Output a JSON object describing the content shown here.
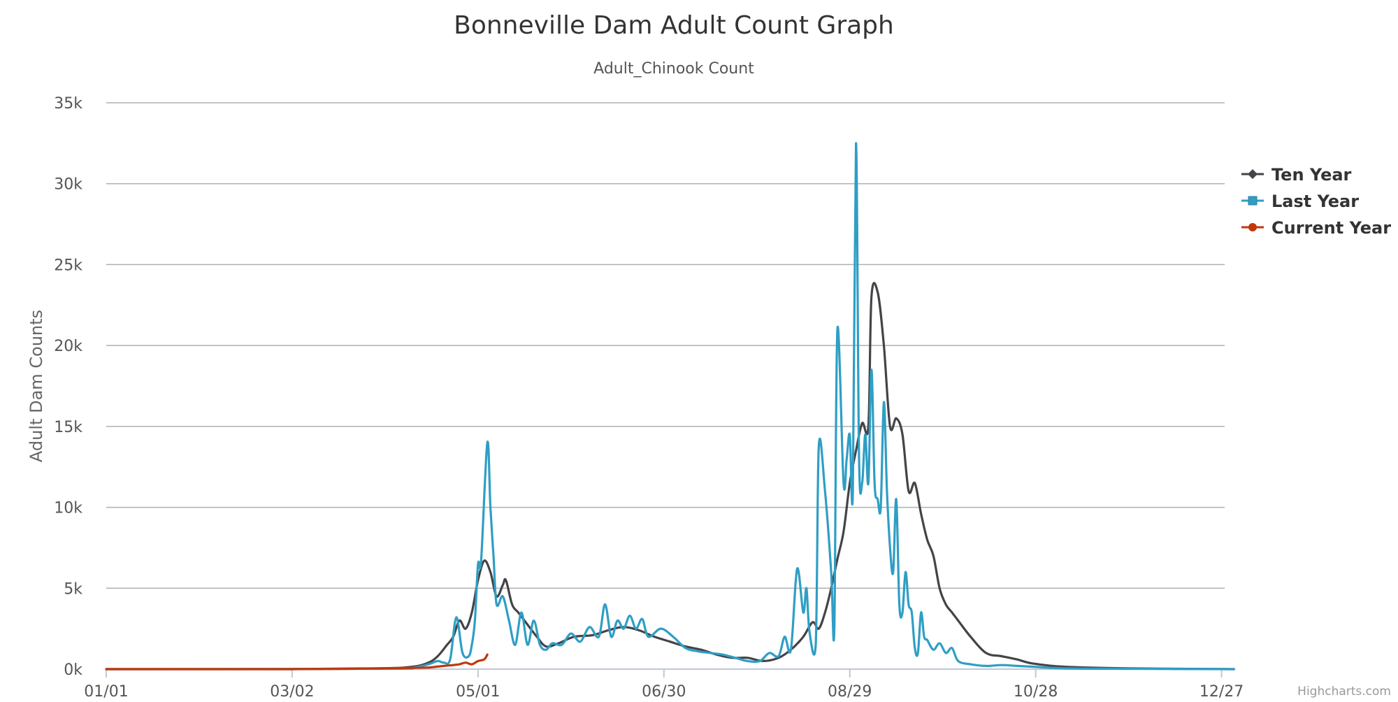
{
  "chart_data": {
    "type": "line",
    "title": "Bonneville Dam Adult Count Graph",
    "subtitle": "Adult_Chinook Count",
    "ylabel": "Adult Dam Counts",
    "xlabel": "",
    "ylim": [
      0,
      35000
    ],
    "y_ticks": [
      0,
      5000,
      10000,
      15000,
      20000,
      25000,
      30000,
      35000
    ],
    "y_tick_labels": [
      "0k",
      "5k",
      "10k",
      "15k",
      "20k",
      "25k",
      "30k",
      "35k"
    ],
    "x_ticks": [
      "01/01",
      "03/02",
      "05/01",
      "06/30",
      "08/29",
      "10/28",
      "12/27"
    ],
    "x_tick_days": [
      1,
      61,
      121,
      181,
      241,
      301,
      361
    ],
    "grid": true,
    "legend_position": "right",
    "credits": "Highcharts.com",
    "series": [
      {
        "name": "Ten Year",
        "color": "#434348",
        "marker": "diamond",
        "points": [
          [
            1,
            0
          ],
          [
            60,
            0
          ],
          [
            90,
            50
          ],
          [
            100,
            150
          ],
          [
            105,
            400
          ],
          [
            108,
            800
          ],
          [
            111,
            1500
          ],
          [
            113,
            2000
          ],
          [
            115,
            3000
          ],
          [
            117,
            2500
          ],
          [
            119,
            3500
          ],
          [
            121,
            5500
          ],
          [
            123,
            6700
          ],
          [
            125,
            6000
          ],
          [
            127,
            4500
          ],
          [
            129,
            5200
          ],
          [
            130,
            5500
          ],
          [
            132,
            4000
          ],
          [
            134,
            3500
          ],
          [
            136,
            3000
          ],
          [
            140,
            2000
          ],
          [
            143,
            1400
          ],
          [
            147,
            1600
          ],
          [
            152,
            2000
          ],
          [
            158,
            2100
          ],
          [
            163,
            2400
          ],
          [
            168,
            2600
          ],
          [
            173,
            2400
          ],
          [
            178,
            2000
          ],
          [
            183,
            1700
          ],
          [
            188,
            1400
          ],
          [
            193,
            1200
          ],
          [
            198,
            900
          ],
          [
            203,
            700
          ],
          [
            208,
            700
          ],
          [
            213,
            500
          ],
          [
            218,
            700
          ],
          [
            222,
            1200
          ],
          [
            226,
            2000
          ],
          [
            229,
            2900
          ],
          [
            231,
            2500
          ],
          [
            233,
            3500
          ],
          [
            235,
            5000
          ],
          [
            237,
            6800
          ],
          [
            239,
            8500
          ],
          [
            241,
            11500
          ],
          [
            243,
            13500
          ],
          [
            245,
            15200
          ],
          [
            247,
            15000
          ],
          [
            248,
            23000
          ],
          [
            250,
            23300
          ],
          [
            252,
            20000
          ],
          [
            254,
            15000
          ],
          [
            256,
            15500
          ],
          [
            258,
            14500
          ],
          [
            260,
            11000
          ],
          [
            262,
            11500
          ],
          [
            264,
            9600
          ],
          [
            266,
            8000
          ],
          [
            268,
            7000
          ],
          [
            270,
            5000
          ],
          [
            272,
            4000
          ],
          [
            274,
            3500
          ],
          [
            276,
            3000
          ],
          [
            280,
            2000
          ],
          [
            285,
            1000
          ],
          [
            290,
            800
          ],
          [
            295,
            600
          ],
          [
            300,
            350
          ],
          [
            310,
            150
          ],
          [
            330,
            50
          ],
          [
            365,
            0
          ]
        ]
      },
      {
        "name": "Last Year",
        "color": "#2f9ec4",
        "marker": "square",
        "points": [
          [
            1,
            0
          ],
          [
            90,
            20
          ],
          [
            100,
            100
          ],
          [
            105,
            300
          ],
          [
            108,
            500
          ],
          [
            110,
            400
          ],
          [
            112,
            600
          ],
          [
            114,
            3200
          ],
          [
            116,
            1000
          ],
          [
            118,
            800
          ],
          [
            119,
            1500
          ],
          [
            120,
            3000
          ],
          [
            121,
            6500
          ],
          [
            122,
            6700
          ],
          [
            124,
            14000
          ],
          [
            125,
            10000
          ],
          [
            126,
            7000
          ],
          [
            127,
            4000
          ],
          [
            129,
            4500
          ],
          [
            131,
            3000
          ],
          [
            133,
            1500
          ],
          [
            135,
            3500
          ],
          [
            137,
            1500
          ],
          [
            139,
            3000
          ],
          [
            141,
            1500
          ],
          [
            143,
            1200
          ],
          [
            145,
            1600
          ],
          [
            148,
            1500
          ],
          [
            151,
            2200
          ],
          [
            154,
            1700
          ],
          [
            157,
            2600
          ],
          [
            160,
            2000
          ],
          [
            162,
            4000
          ],
          [
            164,
            2000
          ],
          [
            166,
            3000
          ],
          [
            168,
            2500
          ],
          [
            170,
            3300
          ],
          [
            172,
            2500
          ],
          [
            174,
            3100
          ],
          [
            176,
            2000
          ],
          [
            180,
            2500
          ],
          [
            184,
            2000
          ],
          [
            188,
            1300
          ],
          [
            192,
            1100
          ],
          [
            196,
            1000
          ],
          [
            200,
            900
          ],
          [
            204,
            700
          ],
          [
            208,
            500
          ],
          [
            212,
            500
          ],
          [
            215,
            1000
          ],
          [
            218,
            800
          ],
          [
            220,
            2000
          ],
          [
            222,
            1200
          ],
          [
            224,
            6200
          ],
          [
            226,
            3500
          ],
          [
            227,
            5000
          ],
          [
            228,
            2300
          ],
          [
            230,
            1500
          ],
          [
            231,
            13800
          ],
          [
            233,
            11000
          ],
          [
            235,
            6000
          ],
          [
            236,
            2500
          ],
          [
            237,
            21000
          ],
          [
            239,
            11500
          ],
          [
            240,
            13000
          ],
          [
            241,
            14500
          ],
          [
            242,
            11000
          ],
          [
            243,
            32500
          ],
          [
            244,
            13000
          ],
          [
            245,
            11500
          ],
          [
            246,
            14500
          ],
          [
            247,
            11500
          ],
          [
            248,
            18500
          ],
          [
            249,
            11500
          ],
          [
            250,
            10500
          ],
          [
            251,
            10000
          ],
          [
            252,
            16500
          ],
          [
            253,
            11000
          ],
          [
            254,
            7500
          ],
          [
            255,
            6000
          ],
          [
            256,
            10500
          ],
          [
            257,
            4000
          ],
          [
            258,
            3500
          ],
          [
            259,
            6000
          ],
          [
            260,
            4000
          ],
          [
            261,
            3500
          ],
          [
            262,
            1300
          ],
          [
            263,
            1000
          ],
          [
            264,
            3500
          ],
          [
            265,
            2000
          ],
          [
            266,
            1800
          ],
          [
            268,
            1200
          ],
          [
            270,
            1600
          ],
          [
            272,
            1000
          ],
          [
            274,
            1300
          ],
          [
            276,
            500
          ],
          [
            280,
            300
          ],
          [
            285,
            200
          ],
          [
            290,
            250
          ],
          [
            295,
            200
          ],
          [
            300,
            150
          ],
          [
            310,
            50
          ],
          [
            330,
            20
          ],
          [
            365,
            0
          ]
        ]
      },
      {
        "name": "Current Year",
        "color": "#c1380b",
        "marker": "circle",
        "points": [
          [
            1,
            0
          ],
          [
            60,
            0
          ],
          [
            80,
            20
          ],
          [
            90,
            50
          ],
          [
            100,
            80
          ],
          [
            105,
            100
          ],
          [
            110,
            200
          ],
          [
            113,
            250
          ],
          [
            115,
            300
          ],
          [
            117,
            400
          ],
          [
            119,
            300
          ],
          [
            121,
            500
          ],
          [
            123,
            600
          ],
          [
            124,
            900
          ]
        ]
      }
    ]
  }
}
